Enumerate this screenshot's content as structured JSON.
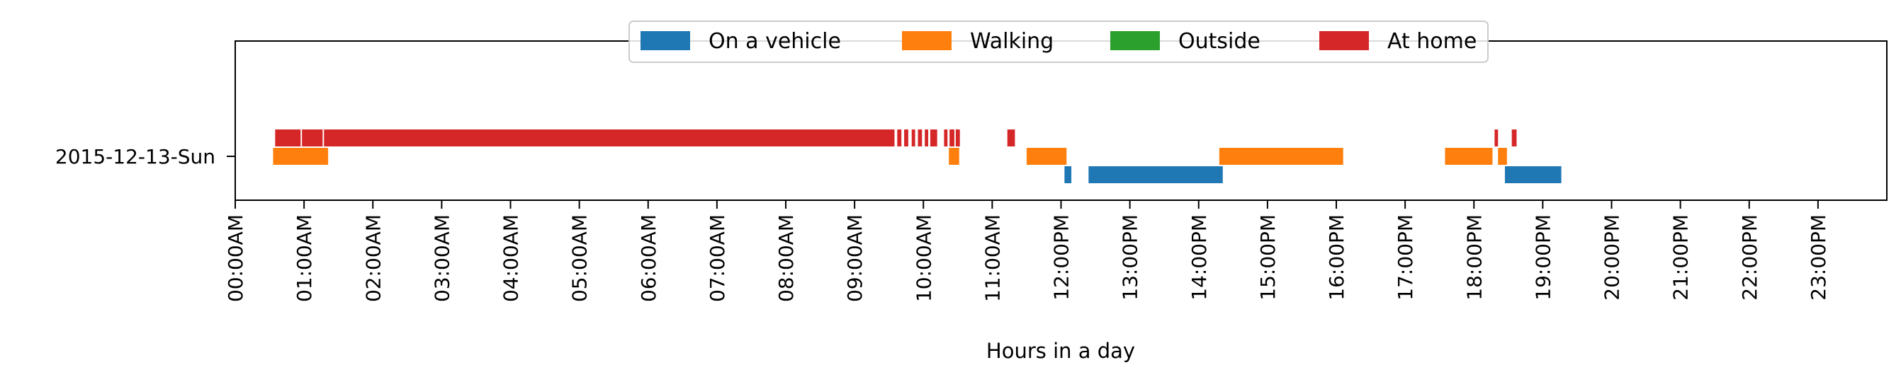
{
  "chart_data": {
    "type": "timeline",
    "title": "",
    "xlabel": "Hours in a day",
    "ylabel": "",
    "xlim": [
      0,
      24
    ],
    "categories": [
      "2015-12-13-Sun"
    ],
    "x_ticks": [
      "00:00AM",
      "01:00AM",
      "02:00AM",
      "03:00AM",
      "04:00AM",
      "05:00AM",
      "06:00AM",
      "07:00AM",
      "08:00AM",
      "09:00AM",
      "10:00AM",
      "11:00AM",
      "12:00PM",
      "13:00PM",
      "14:00PM",
      "15:00PM",
      "16:00PM",
      "17:00PM",
      "18:00PM",
      "19:00PM",
      "20:00PM",
      "21:00PM",
      "22:00PM",
      "23:00PM"
    ],
    "legend_position": "top-center",
    "grid": false,
    "series": [
      {
        "name": "On a vehicle",
        "color": "#1f77b4",
        "segments": [
          [
            12.05,
            12.15
          ],
          [
            12.4,
            14.35
          ],
          [
            18.45,
            19.27
          ]
        ]
      },
      {
        "name": "Walking",
        "color": "#ff7f0e",
        "segments": [
          [
            0.55,
            1.35
          ],
          [
            10.37,
            10.52
          ],
          [
            11.5,
            12.08
          ],
          [
            14.3,
            16.1
          ],
          [
            17.58,
            18.27
          ],
          [
            18.35,
            18.48
          ]
        ]
      },
      {
        "name": "Outside",
        "color": "#2ca02c",
        "segments": []
      },
      {
        "name": "At home",
        "color": "#d62728",
        "segments": [
          [
            0.58,
            0.95
          ],
          [
            0.97,
            1.27
          ],
          [
            1.29,
            9.58
          ],
          [
            9.62,
            9.68
          ],
          [
            9.72,
            9.78
          ],
          [
            9.83,
            9.88
          ],
          [
            9.92,
            9.98
          ],
          [
            10.02,
            10.07
          ],
          [
            10.1,
            10.2
          ],
          [
            10.3,
            10.35
          ],
          [
            10.38,
            10.45
          ],
          [
            10.47,
            10.53
          ],
          [
            11.22,
            11.33
          ],
          [
            18.3,
            18.35
          ],
          [
            18.55,
            18.62
          ]
        ]
      }
    ]
  }
}
